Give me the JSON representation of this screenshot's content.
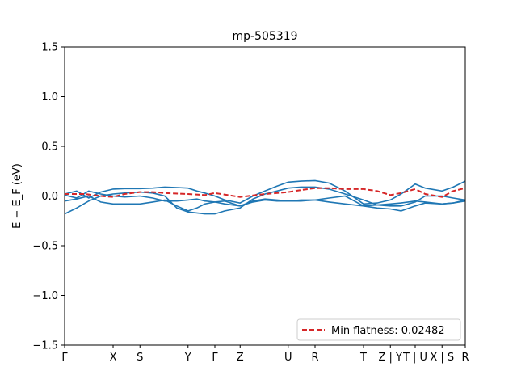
{
  "chart_data": {
    "type": "line",
    "title": "mp-505319",
    "xlabel": "",
    "ylabel": "E − E_F (eV)",
    "ylim": [
      -1.5,
      1.5
    ],
    "xlim": [
      0,
      1
    ],
    "yticks": [
      -1.5,
      -1.0,
      -0.5,
      0.0,
      0.5,
      1.0,
      1.5
    ],
    "ytick_labels": [
      "−1.5",
      "−1.0",
      "−0.5",
      "0.0",
      "0.5",
      "1.0",
      "1.5"
    ],
    "xticks": [
      {
        "label": "Γ",
        "x": 0.0
      },
      {
        "label": "X",
        "x": 0.121
      },
      {
        "label": "S",
        "x": 0.188
      },
      {
        "label": "Y",
        "x": 0.308
      },
      {
        "label": "Γ",
        "x": 0.375
      },
      {
        "label": "Z",
        "x": 0.438
      },
      {
        "label": "U",
        "x": 0.558
      },
      {
        "label": "R",
        "x": 0.625
      },
      {
        "label": "T",
        "x": 0.746
      },
      {
        "label": "Z | Y",
        "x": 0.813
      },
      {
        "label": "T | U",
        "x": 0.875
      },
      {
        "label": "X | S",
        "x": 0.942
      },
      {
        "label": "R",
        "x": 1.0
      }
    ],
    "grid": false,
    "legend_position": "lower-right",
    "series": [
      {
        "name": "",
        "style": "solid",
        "color": "#1f77b4",
        "x": [
          0.0,
          0.03,
          0.06,
          0.09,
          0.121,
          0.15,
          0.188,
          0.22,
          0.25,
          0.28,
          0.308,
          0.33,
          0.35,
          0.375,
          0.4,
          0.438,
          0.47,
          0.5,
          0.53,
          0.558,
          0.59,
          0.625,
          0.66,
          0.7,
          0.746,
          0.78,
          0.813,
          0.84,
          0.875,
          0.9,
          0.942,
          0.97,
          1.0
        ],
        "y": [
          0.02,
          0.05,
          -0.02,
          0.04,
          0.07,
          0.075,
          0.075,
          0.08,
          0.09,
          0.085,
          0.08,
          0.05,
          0.03,
          0.0,
          -0.04,
          -0.07,
          0.0,
          0.05,
          0.1,
          0.14,
          0.15,
          0.155,
          0.13,
          0.05,
          -0.08,
          -0.07,
          -0.04,
          0.02,
          0.12,
          0.08,
          0.05,
          0.09,
          0.15
        ]
      },
      {
        "name": "",
        "style": "solid",
        "color": "#1f77b4",
        "x": [
          0.0,
          0.03,
          0.06,
          0.09,
          0.121,
          0.15,
          0.188,
          0.22,
          0.25,
          0.28,
          0.308,
          0.33,
          0.35,
          0.375,
          0.4,
          0.438,
          0.47,
          0.5,
          0.53,
          0.558,
          0.59,
          0.625,
          0.66,
          0.7,
          0.746,
          0.78,
          0.813,
          0.84,
          0.875,
          0.9,
          0.942,
          0.97,
          1.0
        ],
        "y": [
          -0.18,
          -0.12,
          -0.05,
          0.0,
          0.02,
          0.03,
          0.04,
          0.03,
          0.0,
          -0.12,
          -0.16,
          -0.17,
          -0.18,
          -0.18,
          -0.15,
          -0.12,
          -0.03,
          0.02,
          0.05,
          0.08,
          0.09,
          0.09,
          0.07,
          0.02,
          -0.04,
          -0.09,
          -0.1,
          -0.1,
          -0.06,
          0.0,
          0.0,
          -0.02,
          -0.04
        ]
      },
      {
        "name": "",
        "style": "solid",
        "color": "#1f77b4",
        "x": [
          0.0,
          0.03,
          0.06,
          0.09,
          0.121,
          0.15,
          0.188,
          0.22,
          0.25,
          0.28,
          0.308,
          0.33,
          0.35,
          0.375,
          0.4,
          0.438,
          0.47,
          0.5,
          0.53,
          0.558,
          0.59,
          0.625,
          0.66,
          0.7,
          0.746,
          0.78,
          0.813,
          0.84,
          0.875,
          0.9,
          0.942,
          0.97,
          1.0
        ],
        "y": [
          -0.05,
          -0.03,
          0.0,
          -0.06,
          -0.08,
          -0.08,
          -0.08,
          -0.06,
          -0.04,
          -0.1,
          -0.15,
          -0.12,
          -0.08,
          -0.06,
          -0.05,
          -0.1,
          -0.05,
          -0.03,
          -0.04,
          -0.05,
          -0.05,
          -0.04,
          -0.02,
          0.0,
          -0.1,
          -0.12,
          -0.13,
          -0.15,
          -0.1,
          -0.07,
          -0.08,
          -0.07,
          -0.05
        ]
      },
      {
        "name": "",
        "style": "solid",
        "color": "#1f77b4",
        "x": [
          0.0,
          0.03,
          0.06,
          0.09,
          0.121,
          0.15,
          0.188,
          0.22,
          0.25,
          0.28,
          0.308,
          0.33,
          0.35,
          0.375,
          0.4,
          0.438,
          0.47,
          0.5,
          0.53,
          0.558,
          0.59,
          0.625,
          0.66,
          0.7,
          0.746,
          0.78,
          0.813,
          0.84,
          0.875,
          0.9,
          0.942,
          0.97,
          1.0
        ],
        "y": [
          0.01,
          -0.02,
          0.05,
          0.02,
          0.0,
          -0.01,
          0.0,
          -0.02,
          -0.05,
          -0.05,
          -0.04,
          -0.03,
          -0.05,
          -0.06,
          -0.08,
          -0.1,
          -0.06,
          -0.04,
          -0.05,
          -0.05,
          -0.04,
          -0.04,
          -0.06,
          -0.08,
          -0.1,
          -0.09,
          -0.08,
          -0.07,
          -0.05,
          -0.06,
          -0.08,
          -0.07,
          -0.04
        ]
      },
      {
        "name": "Min flatness: 0.02482",
        "style": "dashed",
        "color": "#d62728",
        "x": [
          0.0,
          0.05,
          0.09,
          0.121,
          0.15,
          0.188,
          0.22,
          0.25,
          0.308,
          0.35,
          0.375,
          0.438,
          0.5,
          0.558,
          0.59,
          0.625,
          0.66,
          0.7,
          0.746,
          0.78,
          0.813,
          0.84,
          0.875,
          0.9,
          0.942,
          0.97,
          1.0
        ],
        "y": [
          0.02,
          0.02,
          0.0,
          -0.01,
          0.02,
          0.04,
          0.04,
          0.03,
          0.02,
          0.01,
          0.03,
          -0.01,
          0.02,
          0.04,
          0.06,
          0.08,
          0.08,
          0.07,
          0.07,
          0.05,
          0.01,
          0.03,
          0.07,
          0.02,
          -0.01,
          0.05,
          0.08
        ]
      }
    ],
    "legend": [
      {
        "label": "Min flatness: 0.02482",
        "style": "dashed",
        "color": "#d62728"
      }
    ]
  }
}
